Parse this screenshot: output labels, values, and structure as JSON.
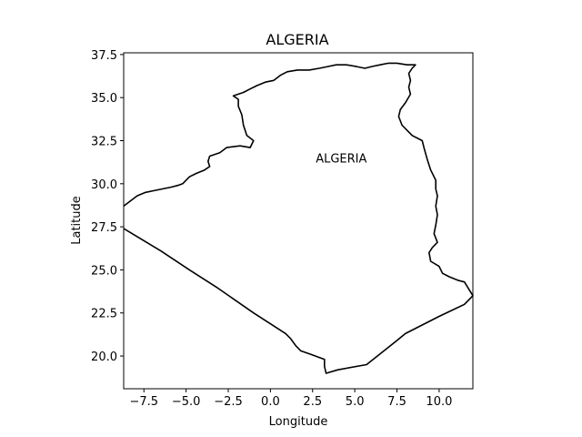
{
  "chart_data": {
    "type": "line",
    "title": "ALGERIA",
    "xlabel": "Longitude",
    "ylabel": "Latitude",
    "xlim": [
      -8.7,
      12.0
    ],
    "ylim": [
      18.1,
      37.6
    ],
    "x_ticks": [
      -7.5,
      -5.0,
      -2.5,
      0.0,
      2.5,
      5.0,
      7.5,
      10.0
    ],
    "x_tick_labels": [
      "−7.5",
      "−5.0",
      "−2.5",
      "0.0",
      "2.5",
      "5.0",
      "7.5",
      "10.0"
    ],
    "y_ticks": [
      20.0,
      22.5,
      25.0,
      27.5,
      30.0,
      32.5,
      35.0,
      37.5
    ],
    "y_tick_labels": [
      "20.0",
      "22.5",
      "25.0",
      "27.5",
      "30.0",
      "32.5",
      "35.0",
      "37.5"
    ],
    "grid": false,
    "line_color": "#000000",
    "annotation": {
      "text": "ALGERIA",
      "x": 4.2,
      "y": 31.5
    },
    "boundary": [
      [
        -8.7,
        28.7
      ],
      [
        -8.3,
        29.0
      ],
      [
        -7.9,
        29.3
      ],
      [
        -7.4,
        29.5
      ],
      [
        -6.9,
        29.6
      ],
      [
        -6.4,
        29.7
      ],
      [
        -5.9,
        29.8
      ],
      [
        -5.5,
        29.9
      ],
      [
        -5.2,
        30.0
      ],
      [
        -4.8,
        30.4
      ],
      [
        -4.4,
        30.6
      ],
      [
        -3.9,
        30.8
      ],
      [
        -3.6,
        31.0
      ],
      [
        -3.7,
        31.3
      ],
      [
        -3.6,
        31.6
      ],
      [
        -3.0,
        31.8
      ],
      [
        -2.6,
        32.1
      ],
      [
        -1.8,
        32.2
      ],
      [
        -1.2,
        32.1
      ],
      [
        -1.0,
        32.5
      ],
      [
        -1.4,
        32.8
      ],
      [
        -1.6,
        33.4
      ],
      [
        -1.7,
        34.0
      ],
      [
        -1.9,
        34.5
      ],
      [
        -1.9,
        34.9
      ],
      [
        -2.2,
        35.1
      ],
      [
        -1.6,
        35.3
      ],
      [
        -1.2,
        35.5
      ],
      [
        -0.8,
        35.7
      ],
      [
        -0.3,
        35.9
      ],
      [
        0.2,
        36.0
      ],
      [
        0.6,
        36.3
      ],
      [
        1.0,
        36.5
      ],
      [
        1.6,
        36.6
      ],
      [
        2.3,
        36.6
      ],
      [
        2.9,
        36.7
      ],
      [
        3.4,
        36.8
      ],
      [
        3.9,
        36.9
      ],
      [
        4.5,
        36.9
      ],
      [
        5.1,
        36.8
      ],
      [
        5.6,
        36.7
      ],
      [
        6.0,
        36.8
      ],
      [
        6.5,
        36.9
      ],
      [
        7.0,
        37.0
      ],
      [
        7.5,
        37.0
      ],
      [
        8.1,
        36.9
      ],
      [
        8.6,
        36.9
      ],
      [
        8.4,
        36.7
      ],
      [
        8.2,
        36.4
      ],
      [
        8.3,
        36.0
      ],
      [
        8.2,
        35.6
      ],
      [
        8.3,
        35.2
      ],
      [
        8.0,
        34.7
      ],
      [
        7.7,
        34.3
      ],
      [
        7.6,
        33.9
      ],
      [
        7.8,
        33.4
      ],
      [
        8.1,
        33.1
      ],
      [
        8.4,
        32.8
      ],
      [
        9.0,
        32.5
      ],
      [
        9.1,
        32.1
      ],
      [
        9.3,
        31.4
      ],
      [
        9.5,
        30.8
      ],
      [
        9.8,
        30.2
      ],
      [
        9.8,
        29.7
      ],
      [
        9.9,
        29.3
      ],
      [
        9.8,
        28.7
      ],
      [
        9.9,
        28.2
      ],
      [
        9.8,
        27.6
      ],
      [
        9.7,
        27.1
      ],
      [
        9.9,
        26.6
      ],
      [
        9.6,
        26.3
      ],
      [
        9.4,
        26.0
      ],
      [
        9.5,
        25.5
      ],
      [
        10.0,
        25.2
      ],
      [
        10.2,
        24.8
      ],
      [
        10.6,
        24.6
      ],
      [
        11.1,
        24.4
      ],
      [
        11.5,
        24.3
      ],
      [
        12.0,
        23.5
      ],
      [
        11.5,
        23.0
      ],
      [
        10.0,
        22.3
      ],
      [
        8.0,
        21.3
      ],
      [
        7.5,
        20.9
      ],
      [
        5.7,
        19.5
      ],
      [
        4.0,
        19.2
      ],
      [
        3.3,
        19.0
      ],
      [
        3.2,
        19.4
      ],
      [
        3.2,
        19.8
      ],
      [
        2.4,
        20.1
      ],
      [
        1.8,
        20.3
      ],
      [
        1.5,
        20.6
      ],
      [
        1.2,
        21.0
      ],
      [
        0.9,
        21.3
      ],
      [
        -1.0,
        22.5
      ],
      [
        -3.2,
        24.0
      ],
      [
        -4.8,
        25.0
      ],
      [
        -6.5,
        26.1
      ],
      [
        -8.7,
        27.4
      ]
    ]
  }
}
